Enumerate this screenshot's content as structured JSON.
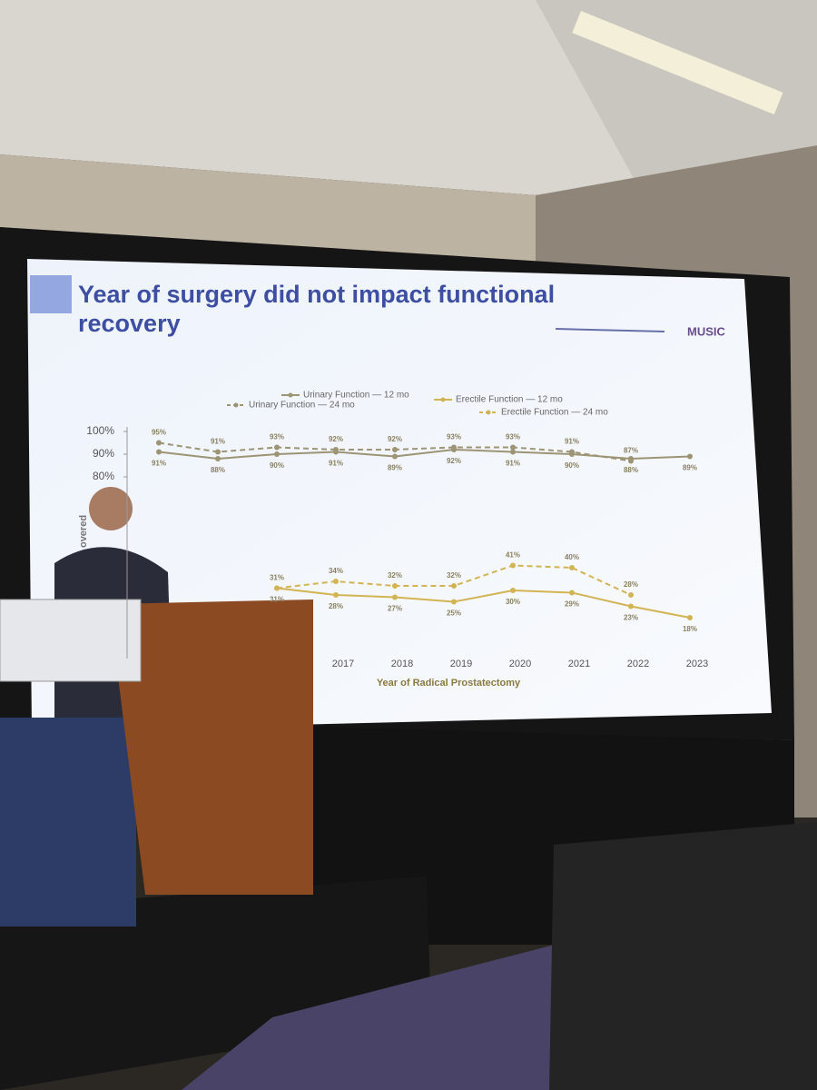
{
  "slide": {
    "logo": "MUSIC"
  },
  "chart_data": {
    "type": "line",
    "title": "Year of surgery did not impact functional recovery",
    "y_label": "overed",
    "x_label": "Year of Radical Prostatectomy",
    "categories": [
      null,
      null,
      null,
      "2017",
      "2018",
      "2019",
      "2020",
      "2021",
      "2022",
      "2023"
    ],
    "ylim": [
      0,
      100
    ],
    "yticks": [
      {
        "value": 80,
        "label": "80%"
      },
      {
        "value": 90,
        "label": "90%"
      },
      {
        "value": 100,
        "label": "100%"
      }
    ],
    "series": [
      {
        "name": "Urinary Function — 12 mo",
        "color": "#9c9474",
        "line_style": "solid",
        "values": [
          91,
          88,
          90,
          91,
          89,
          92,
          91,
          90,
          88,
          89
        ],
        "value_labels": [
          "91%",
          "88%",
          "90%",
          "91%",
          "89%",
          "92%",
          "91%",
          "90%",
          "88%",
          "89%"
        ]
      },
      {
        "name": "Urinary Function — 24 mo",
        "color": "#9c9474",
        "line_style": "dashed",
        "values": [
          95,
          91,
          93,
          92,
          92,
          93,
          93,
          91,
          87,
          null
        ],
        "value_labels": [
          "95%",
          "91%",
          "93%",
          "92%",
          "92%",
          "93%",
          "93%",
          "91%",
          "87%",
          null
        ]
      },
      {
        "name": "Erectile Function — 12 mo",
        "color": "#d2b455",
        "line_style": "solid",
        "values": [
          null,
          null,
          31,
          28,
          27,
          25,
          30,
          29,
          23,
          18
        ],
        "value_labels": [
          null,
          null,
          "31%",
          "28%",
          "27%",
          "25%",
          "30%",
          "29%",
          "23%",
          "18%"
        ]
      },
      {
        "name": "Erectile Function — 24 mo",
        "color": "#d2b455",
        "line_style": "dashed",
        "values": [
          null,
          null,
          31,
          34,
          32,
          32,
          41,
          40,
          28,
          null
        ],
        "value_labels": [
          null,
          null,
          "31%",
          "34%",
          "32%",
          "32%",
          "41%",
          "40%",
          "28%",
          null
        ]
      }
    ]
  }
}
